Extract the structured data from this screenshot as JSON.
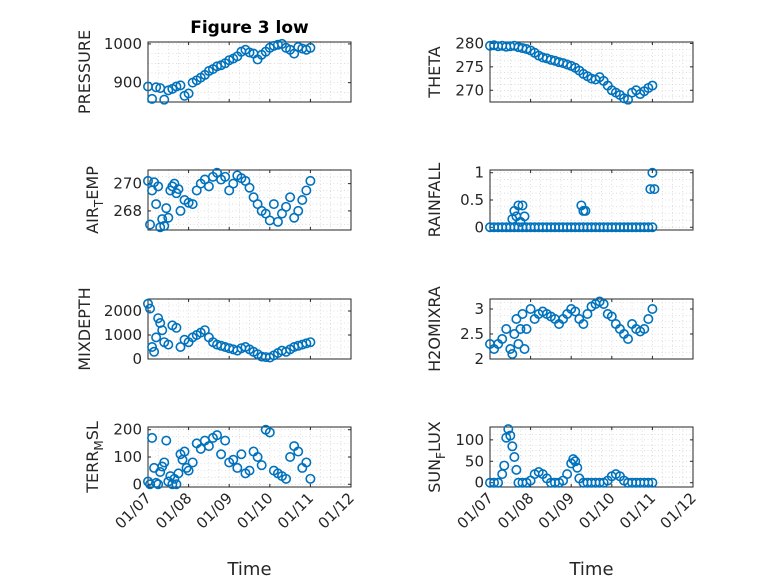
{
  "chart_data": [
    {
      "type": "scatter",
      "title": "Figure 3 low",
      "ylabel": "PRESSURE",
      "xlabel": "",
      "ylim": [
        850,
        1005
      ],
      "yticks": [
        900,
        1000
      ],
      "x": [
        7.0,
        7.1,
        7.2,
        7.3,
        7.4,
        7.5,
        7.6,
        7.7,
        7.8,
        7.9,
        8.0,
        8.1,
        8.2,
        8.3,
        8.4,
        8.5,
        8.6,
        8.7,
        8.8,
        8.9,
        9.0,
        9.1,
        9.2,
        9.3,
        9.4,
        9.5,
        9.6,
        9.7,
        9.8,
        9.9,
        10.0,
        10.1,
        10.2,
        10.3,
        10.4,
        10.5,
        10.6,
        10.7,
        10.8,
        10.9,
        11.0
      ],
      "y": [
        890,
        858,
        888,
        886,
        856,
        880,
        884,
        890,
        893,
        866,
        872,
        900,
        906,
        913,
        920,
        930,
        935,
        942,
        945,
        950,
        958,
        962,
        968,
        980,
        985,
        978,
        975,
        960,
        972,
        980,
        990,
        995,
        998,
        1000,
        990,
        985,
        975,
        992,
        988,
        985,
        990
      ]
    },
    {
      "type": "scatter",
      "title": "",
      "ylabel": "THETA",
      "xlabel": "",
      "ylim": [
        267.5,
        280.3
      ],
      "yticks": [
        270,
        275,
        280
      ],
      "x": [
        7.0,
        7.1,
        7.2,
        7.3,
        7.4,
        7.5,
        7.6,
        7.7,
        7.8,
        7.9,
        8.0,
        8.1,
        8.2,
        8.3,
        8.4,
        8.5,
        8.6,
        8.7,
        8.8,
        8.9,
        9.0,
        9.1,
        9.2,
        9.3,
        9.4,
        9.5,
        9.6,
        9.7,
        9.8,
        9.9,
        10.0,
        10.1,
        10.2,
        10.3,
        10.4,
        10.5,
        10.6,
        10.7,
        10.8,
        10.9,
        11.0
      ],
      "y": [
        279.5,
        279.6,
        279.4,
        279.5,
        279.3,
        279.4,
        279.5,
        279.2,
        279.0,
        278.8,
        278.5,
        278.0,
        277.4,
        277.0,
        276.8,
        276.5,
        276.3,
        276.0,
        275.8,
        275.5,
        275.2,
        274.8,
        274.2,
        273.5,
        273.0,
        272.5,
        272.3,
        272.8,
        272.0,
        271.0,
        270.0,
        269.5,
        269.0,
        268.3,
        268.0,
        269.5,
        270.0,
        269.2,
        269.8,
        270.5,
        271.0
      ]
    },
    {
      "type": "scatter",
      "title": "",
      "ylabel": "AIR_TEMP",
      "xlabel": "",
      "ylim": [
        266.6,
        271.0
      ],
      "yticks": [
        268,
        270
      ],
      "x": [
        7.0,
        7.05,
        7.1,
        7.15,
        7.2,
        7.25,
        7.3,
        7.35,
        7.4,
        7.45,
        7.5,
        7.55,
        7.6,
        7.65,
        7.7,
        7.75,
        7.8,
        7.9,
        8.0,
        8.1,
        8.2,
        8.3,
        8.4,
        8.5,
        8.6,
        8.7,
        8.8,
        8.9,
        9.0,
        9.1,
        9.2,
        9.3,
        9.4,
        9.5,
        9.6,
        9.7,
        9.8,
        9.9,
        10.0,
        10.1,
        10.2,
        10.3,
        10.4,
        10.5,
        10.6,
        10.7,
        10.8,
        10.9,
        11.0
      ],
      "y": [
        270.2,
        267.0,
        269.5,
        270.1,
        268.5,
        269.8,
        266.8,
        267.4,
        266.9,
        268.2,
        267.5,
        269.5,
        269.8,
        270.0,
        269.3,
        269.6,
        268.0,
        268.8,
        268.6,
        268.5,
        269.5,
        270.0,
        270.3,
        269.8,
        270.5,
        270.8,
        270.3,
        270.5,
        269.5,
        270.0,
        270.6,
        270.4,
        270.2,
        269.7,
        269.0,
        268.5,
        268.0,
        267.8,
        267.3,
        268.5,
        267.2,
        267.8,
        268.3,
        269.0,
        267.5,
        268.0,
        268.8,
        269.5,
        270.2
      ]
    },
    {
      "type": "scatter",
      "title": "",
      "ylabel": "RAINFALL",
      "xlabel": "",
      "ylim": [
        -0.05,
        1.05
      ],
      "yticks": [
        0,
        0.5,
        1
      ],
      "x": [
        7.0,
        7.1,
        7.2,
        7.3,
        7.4,
        7.5,
        7.6,
        7.7,
        7.8,
        7.9,
        8.0,
        8.1,
        8.2,
        8.3,
        8.4,
        8.5,
        8.6,
        8.7,
        8.8,
        8.9,
        9.0,
        9.1,
        9.2,
        9.3,
        9.4,
        9.5,
        9.6,
        9.7,
        9.8,
        9.9,
        10.0,
        10.1,
        10.2,
        10.3,
        10.4,
        10.5,
        10.6,
        10.7,
        10.8,
        10.9,
        11.0,
        7.55,
        7.6,
        7.65,
        7.7,
        7.75,
        7.8,
        7.85,
        9.25,
        9.3,
        9.35,
        10.95,
        11.0,
        11.05
      ],
      "y": [
        0,
        0,
        0,
        0,
        0,
        0,
        0,
        0,
        0,
        0,
        0,
        0,
        0,
        0,
        0,
        0,
        0,
        0,
        0,
        0,
        0,
        0,
        0,
        0,
        0,
        0,
        0,
        0,
        0,
        0,
        0,
        0,
        0,
        0,
        0,
        0,
        0,
        0,
        0,
        0,
        0,
        0.15,
        0.3,
        0.2,
        0.4,
        0.1,
        0.4,
        0.2,
        0.4,
        0.3,
        0.3,
        0.7,
        1.0,
        0.7
      ]
    },
    {
      "type": "scatter",
      "title": "",
      "ylabel": "MIXDEPTH",
      "xlabel": "",
      "ylim": [
        0,
        2500
      ],
      "yticks": [
        0,
        1000,
        2000
      ],
      "x": [
        7.0,
        7.05,
        7.1,
        7.15,
        7.2,
        7.25,
        7.3,
        7.35,
        7.4,
        7.5,
        7.6,
        7.7,
        7.8,
        7.9,
        8.0,
        8.1,
        8.2,
        8.3,
        8.4,
        8.5,
        8.6,
        8.7,
        8.8,
        8.9,
        9.0,
        9.1,
        9.2,
        9.3,
        9.4,
        9.5,
        9.6,
        9.7,
        9.8,
        9.9,
        10.0,
        10.1,
        10.2,
        10.3,
        10.4,
        10.5,
        10.6,
        10.7,
        10.8,
        10.9,
        11.0
      ],
      "y": [
        2300,
        2100,
        500,
        300,
        900,
        1700,
        1500,
        1200,
        700,
        600,
        1400,
        1300,
        500,
        800,
        700,
        900,
        1000,
        1100,
        1200,
        900,
        700,
        600,
        550,
        500,
        450,
        400,
        350,
        450,
        500,
        400,
        300,
        200,
        100,
        80,
        60,
        150,
        250,
        350,
        300,
        400,
        500,
        550,
        600,
        650,
        700
      ]
    },
    {
      "type": "scatter",
      "title": "",
      "ylabel": "H2OMIXRA",
      "xlabel": "",
      "ylim": [
        2.0,
        3.2
      ],
      "yticks": [
        2,
        2.5,
        3
      ],
      "x": [
        7.0,
        7.1,
        7.2,
        7.3,
        7.4,
        7.5,
        7.55,
        7.6,
        7.65,
        7.7,
        7.75,
        7.8,
        7.85,
        7.9,
        8.0,
        8.1,
        8.2,
        8.3,
        8.4,
        8.5,
        8.6,
        8.7,
        8.8,
        8.9,
        9.0,
        9.1,
        9.2,
        9.3,
        9.4,
        9.5,
        9.6,
        9.7,
        9.8,
        9.9,
        10.0,
        10.1,
        10.2,
        10.3,
        10.4,
        10.5,
        10.6,
        10.7,
        10.8,
        10.9,
        11.0
      ],
      "y": [
        2.3,
        2.2,
        2.3,
        2.4,
        2.6,
        2.2,
        2.1,
        2.5,
        2.8,
        2.3,
        2.6,
        2.9,
        2.2,
        2.6,
        3.0,
        2.8,
        2.9,
        2.95,
        2.9,
        2.85,
        2.8,
        2.7,
        2.8,
        2.9,
        3.0,
        2.95,
        2.8,
        2.7,
        2.9,
        3.05,
        3.1,
        3.15,
        3.1,
        2.9,
        2.85,
        2.7,
        2.6,
        2.5,
        2.4,
        2.7,
        2.6,
        2.55,
        2.6,
        2.8,
        3.0
      ]
    },
    {
      "type": "scatter",
      "title": "",
      "ylabel": "TERR_MSL",
      "xlabel": "Time",
      "ylim": [
        -10,
        210
      ],
      "yticks": [
        0,
        100,
        200
      ],
      "xlim": [
        7,
        12
      ],
      "xticklabels": [
        "01/07",
        "01/08",
        "01/09",
        "01/10",
        "01/11",
        "01/12"
      ],
      "x": [
        7.0,
        7.05,
        7.1,
        7.15,
        7.2,
        7.25,
        7.3,
        7.35,
        7.4,
        7.45,
        7.5,
        7.55,
        7.6,
        7.65,
        7.7,
        7.75,
        7.8,
        7.85,
        7.9,
        7.95,
        8.0,
        8.1,
        8.2,
        8.3,
        8.4,
        8.5,
        8.6,
        8.7,
        8.8,
        8.9,
        9.0,
        9.1,
        9.2,
        9.3,
        9.4,
        9.5,
        9.6,
        9.7,
        9.8,
        9.9,
        10.0,
        10.1,
        10.2,
        10.3,
        10.4,
        10.5,
        10.6,
        10.7,
        10.8,
        10.9,
        11.0
      ],
      "y": [
        10,
        0,
        170,
        60,
        5,
        0,
        45,
        65,
        80,
        160,
        10,
        30,
        0,
        20,
        0,
        40,
        110,
        90,
        120,
        60,
        50,
        80,
        150,
        130,
        160,
        140,
        170,
        180,
        110,
        160,
        80,
        90,
        60,
        110,
        40,
        50,
        120,
        100,
        70,
        200,
        190,
        50,
        40,
        30,
        20,
        100,
        140,
        120,
        60,
        80,
        20
      ]
    },
    {
      "type": "scatter",
      "title": "",
      "ylabel": "SUN_FLUX",
      "xlabel": "Time",
      "ylim": [
        -10,
        130
      ],
      "yticks": [
        0,
        50,
        100
      ],
      "xlim": [
        7,
        12
      ],
      "xticklabels": [
        "01/07",
        "01/08",
        "01/09",
        "01/10",
        "01/11",
        "01/12"
      ],
      "x": [
        7.0,
        7.1,
        7.2,
        7.3,
        7.35,
        7.4,
        7.45,
        7.5,
        7.55,
        7.6,
        7.65,
        7.7,
        7.8,
        7.9,
        8.0,
        8.1,
        8.2,
        8.3,
        8.4,
        8.5,
        8.6,
        8.7,
        8.8,
        8.9,
        9.0,
        9.05,
        9.1,
        9.15,
        9.2,
        9.3,
        9.4,
        9.5,
        9.6,
        9.7,
        9.8,
        9.9,
        10.0,
        10.1,
        10.2,
        10.3,
        10.4,
        10.5,
        10.6,
        10.7,
        10.8,
        10.9,
        11.0
      ],
      "y": [
        0,
        0,
        0,
        20,
        40,
        105,
        125,
        110,
        85,
        60,
        30,
        0,
        0,
        0,
        5,
        20,
        25,
        20,
        10,
        0,
        0,
        0,
        5,
        20,
        45,
        55,
        50,
        35,
        10,
        0,
        0,
        0,
        0,
        0,
        0,
        5,
        15,
        20,
        15,
        5,
        0,
        0,
        0,
        0,
        0,
        0,
        0
      ]
    }
  ],
  "colors": {
    "marker": "#0072BD",
    "axis": "#262626",
    "grid": "#c8c8c8"
  }
}
